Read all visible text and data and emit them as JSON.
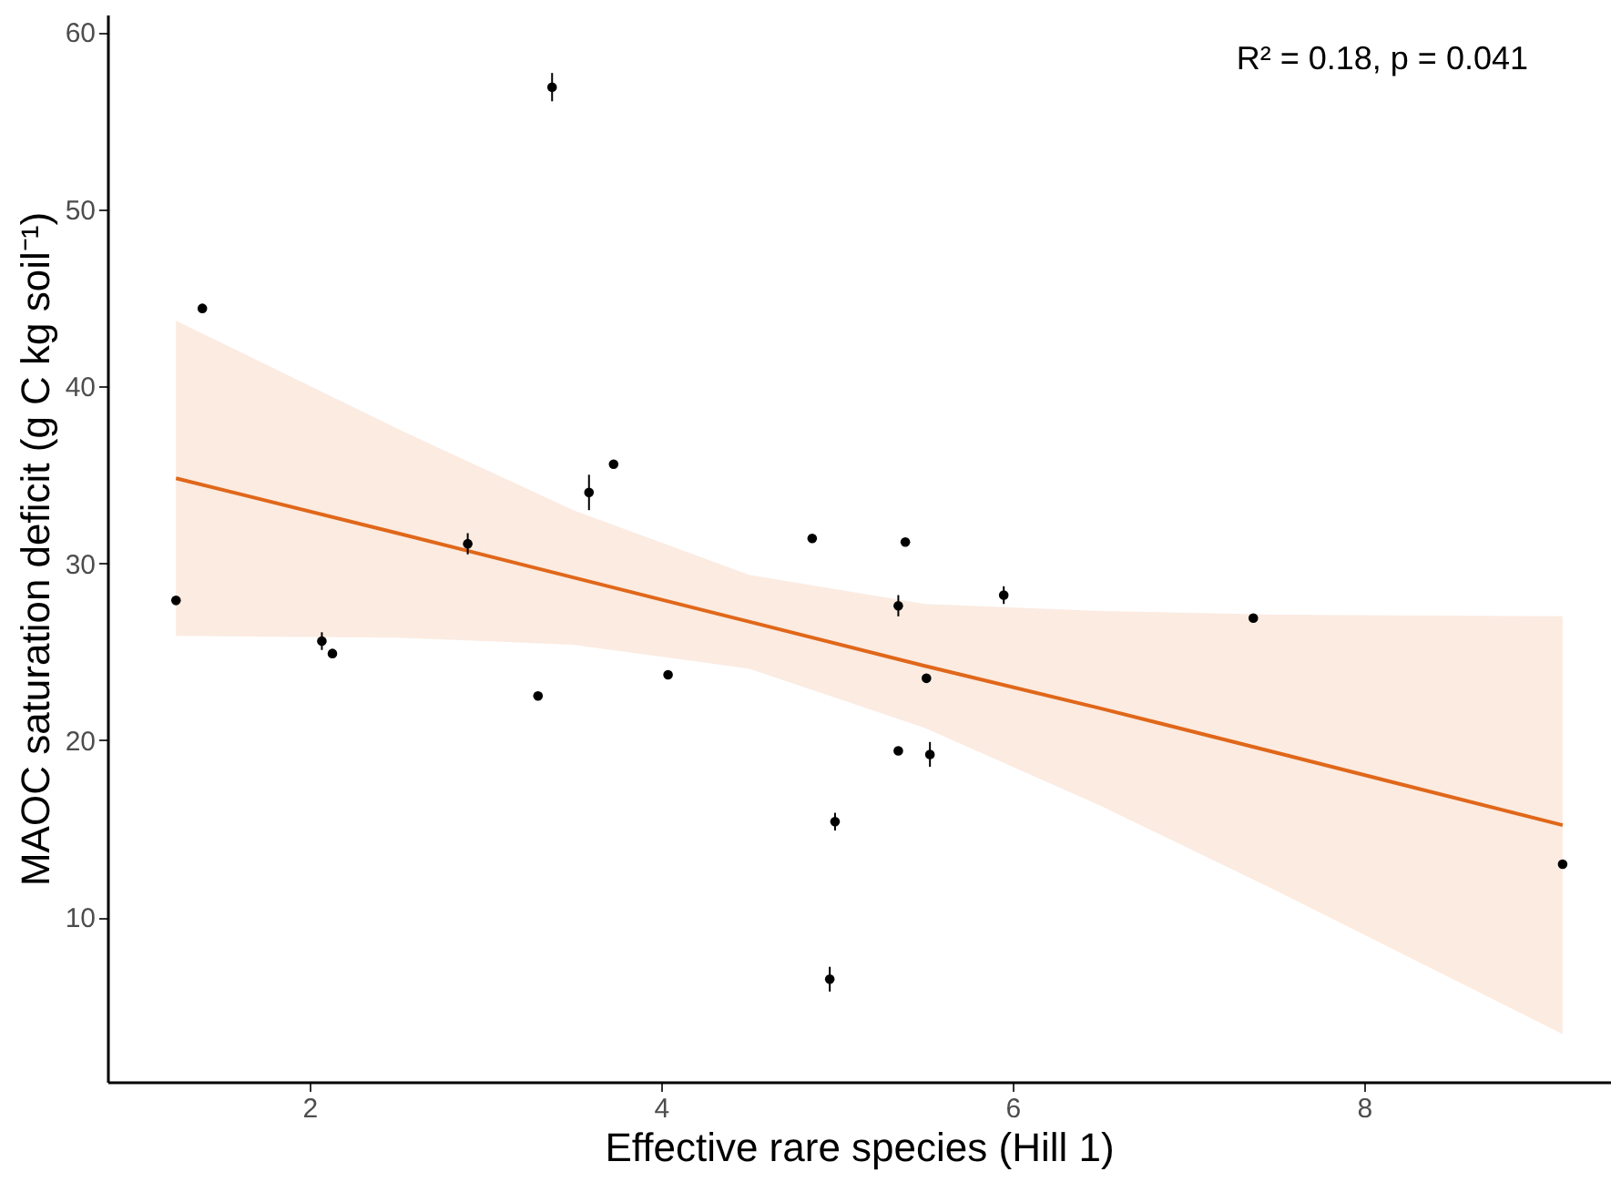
{
  "chart_data": {
    "type": "scatter",
    "xlabel": "Effective rare species (Hill 1)",
    "ylabel": "MAOC saturation deficit (g C kg soil⁻¹)",
    "annotations": [
      "R² = 0.18, p = 0.041"
    ],
    "xlim": [
      0.85,
      9.4
    ],
    "ylim": [
      0.7,
      61
    ],
    "xticks": [
      2,
      4,
      6,
      8
    ],
    "yticks": [
      10,
      20,
      30,
      40,
      50,
      60
    ],
    "grid": false,
    "series": [
      {
        "color": "#000000",
        "marker": "circle",
        "x": [
          1.24,
          1.39,
          2.07,
          2.13,
          2.9,
          3.3,
          3.38,
          3.59,
          3.73,
          4.04,
          4.86,
          4.96,
          4.99,
          5.35,
          5.35,
          5.39,
          5.51,
          5.53,
          5.95,
          7.37,
          9.13
        ],
        "values": [
          27.9,
          44.4,
          25.6,
          24.9,
          31.1,
          22.5,
          56.9,
          34.0,
          35.6,
          23.7,
          31.4,
          6.5,
          15.4,
          19.4,
          27.6,
          31.2,
          23.5,
          19.2,
          28.2,
          26.9,
          13.0
        ],
        "errors": [
          null,
          null,
          0.5,
          null,
          0.6,
          null,
          0.8,
          1.0,
          null,
          null,
          null,
          0.7,
          0.5,
          null,
          0.6,
          null,
          null,
          0.7,
          0.5,
          null,
          null
        ]
      },
      {
        "type": "line",
        "color": "#e0671a",
        "line_style": "solid",
        "x": [
          1.24,
          2.5,
          3.5,
          4.5,
          5.5,
          6.5,
          7.5,
          9.13
        ],
        "values": [
          34.8,
          31.7,
          29.2,
          26.7,
          24.2,
          21.8,
          19.3,
          15.2
        ],
        "lower": [
          25.9,
          25.8,
          25.4,
          24.05,
          20.7,
          16.3,
          11.5,
          3.4
        ],
        "upper": [
          43.7,
          37.6,
          33.0,
          29.35,
          27.7,
          27.3,
          27.1,
          27.0
        ]
      }
    ]
  }
}
